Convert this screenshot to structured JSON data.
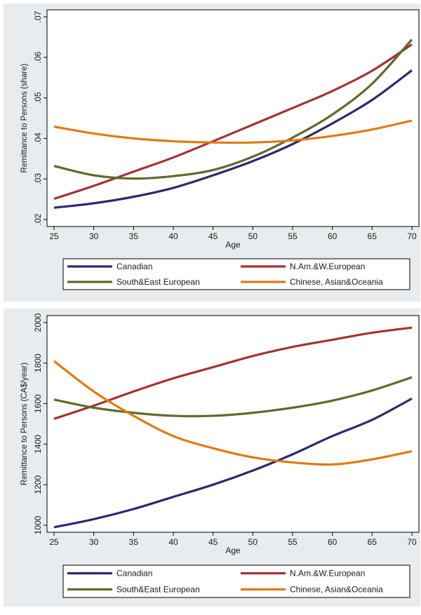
{
  "chart_data": [
    {
      "type": "line",
      "title": "",
      "xlabel": "Age",
      "ylabel": "Remittance to Persons (share)",
      "xlim": [
        25,
        70
      ],
      "ylim": [
        0.02,
        0.07
      ],
      "x_ticks": [
        25,
        30,
        35,
        40,
        45,
        50,
        55,
        60,
        65,
        70
      ],
      "x_tick_labels": [
        "25",
        "30",
        "35",
        "40",
        "45",
        "50",
        "55",
        "60",
        "65",
        "70"
      ],
      "y_ticks": [
        0.02,
        0.03,
        0.04,
        0.05,
        0.06,
        0.07
      ],
      "y_tick_labels": [
        ".02",
        ".03",
        ".04",
        ".05",
        ".06",
        ".07"
      ],
      "grid": false,
      "legend_position": "bottom",
      "x": [
        25,
        30,
        35,
        40,
        45,
        50,
        55,
        60,
        65,
        70
      ],
      "series": [
        {
          "name": "Canadian",
          "color": "#2a2a6e",
          "values": [
            0.0229,
            0.024,
            0.0256,
            0.0278,
            0.0309,
            0.0344,
            0.0386,
            0.0437,
            0.0495,
            0.0568
          ]
        },
        {
          "name": "N.Am.&W.European",
          "color": "#a33232",
          "values": [
            0.0251,
            0.0283,
            0.0318,
            0.0353,
            0.0393,
            0.0434,
            0.0475,
            0.0517,
            0.0567,
            0.0632
          ]
        },
        {
          "name": "South&East European",
          "color": "#5e6a2c",
          "values": [
            0.0332,
            0.0309,
            0.0301,
            0.0307,
            0.0322,
            0.0355,
            0.0402,
            0.0459,
            0.0535,
            0.0644
          ]
        },
        {
          "name": "Chinese, Asian&Oceania",
          "color": "#e07b12",
          "values": [
            0.0429,
            0.0412,
            0.04,
            0.0393,
            0.039,
            0.039,
            0.0395,
            0.0406,
            0.0422,
            0.0444
          ]
        }
      ],
      "legend_labels": [
        "Canadian",
        "N.Am.&W.European",
        "South&East European",
        "Chinese, Asian&Oceania"
      ]
    },
    {
      "type": "line",
      "title": "",
      "xlabel": "Age",
      "ylabel": "Remittance to Persons (CA$/year)",
      "xlim": [
        25,
        70
      ],
      "ylim": [
        1000,
        2000
      ],
      "x_ticks": [
        25,
        30,
        35,
        40,
        45,
        50,
        55,
        60,
        65,
        70
      ],
      "x_tick_labels": [
        "25",
        "30",
        "35",
        "40",
        "45",
        "50",
        "55",
        "60",
        "65",
        "70"
      ],
      "y_ticks": [
        1000,
        1200,
        1400,
        1600,
        1800,
        2000
      ],
      "y_tick_labels": [
        "1000",
        "1200",
        "1400",
        "1600",
        "1800",
        "2000"
      ],
      "grid": false,
      "legend_position": "bottom",
      "x": [
        25,
        30,
        35,
        40,
        45,
        50,
        55,
        60,
        65,
        70
      ],
      "series": [
        {
          "name": "Canadian",
          "color": "#2a2a6e",
          "values": [
            990,
            1030,
            1080,
            1140,
            1200,
            1270,
            1350,
            1440,
            1520,
            1625
          ]
        },
        {
          "name": "N.Am.&W.European",
          "color": "#a33232",
          "values": [
            1525,
            1590,
            1660,
            1725,
            1780,
            1835,
            1880,
            1915,
            1950,
            1975
          ]
        },
        {
          "name": "South&East European",
          "color": "#5e6a2c",
          "values": [
            1620,
            1580,
            1555,
            1540,
            1540,
            1555,
            1580,
            1615,
            1665,
            1730
          ]
        },
        {
          "name": "Chinese, Asian&Oceania",
          "color": "#e07b12",
          "values": [
            1810,
            1660,
            1540,
            1440,
            1380,
            1335,
            1310,
            1300,
            1325,
            1365
          ]
        }
      ],
      "legend_labels": [
        "Canadian",
        "N.Am.&W.European",
        "South&East European",
        "Chinese, Asian&Oceania"
      ]
    }
  ],
  "colors": {
    "panel_background": "#e8ecee",
    "plot_background": "#ffffff"
  }
}
